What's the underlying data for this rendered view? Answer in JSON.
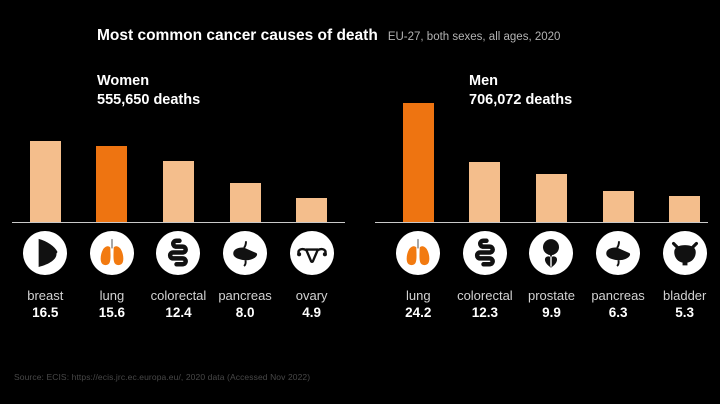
{
  "title": {
    "main": "Most common cancer causes of death",
    "subtitle": "EU-27, both sexes, all ages, 2020"
  },
  "source": "Source: ECIS: https://ecis.jrc.ec.europa.eu/, 2020 data (Accessed Nov 2022)",
  "colors": {
    "background": "#000000",
    "bar_default": "#F4BE8C",
    "bar_highlight": "#EE7411",
    "lungs_orange": "#F27A10",
    "axis_line": "#C9C9C9",
    "organ_label": "#D2D2D2",
    "value_label": "#FFFFFF",
    "subtitle_text": "#B3B3B3",
    "source_text": "#484848",
    "icon_circle": "#FFFFFF",
    "icon_glyph": "#111111"
  },
  "chart_data": {
    "type": "bar",
    "title": "Most common cancer causes of death",
    "subtitle": "EU-27, both sexes, all ages, 2020",
    "ylim": [
      0,
      25
    ],
    "grid": false,
    "legend": "none",
    "bar_color_default": "#F4BE8C",
    "bar_color_highlight": "#EE7411",
    "groups": [
      {
        "name": "Women",
        "deaths_label": "555,650 deaths",
        "categories": [
          "breast",
          "lung",
          "colorectal",
          "pancreas",
          "ovary"
        ],
        "values": [
          16.5,
          15.6,
          12.4,
          8.0,
          4.9
        ],
        "value_labels": [
          "16.5",
          "15.6",
          "12.4",
          "8.0",
          "4.9"
        ],
        "icons": [
          "breast-icon",
          "lungs-icon",
          "colorectal-icon",
          "pancreas-icon",
          "ovary-icon"
        ],
        "highlight_index": 1
      },
      {
        "name": "Men",
        "deaths_label": "706,072 deaths",
        "categories": [
          "lung",
          "colorectal",
          "prostate",
          "pancreas",
          "bladder"
        ],
        "values": [
          24.2,
          12.3,
          9.9,
          6.3,
          5.3
        ],
        "value_labels": [
          "24.2",
          "12.3",
          "9.9",
          "6.3",
          "5.3"
        ],
        "icons": [
          "lungs-icon",
          "colorectal-icon",
          "prostate-icon",
          "pancreas-icon",
          "bladder-icon"
        ],
        "highlight_index": 0
      }
    ]
  }
}
